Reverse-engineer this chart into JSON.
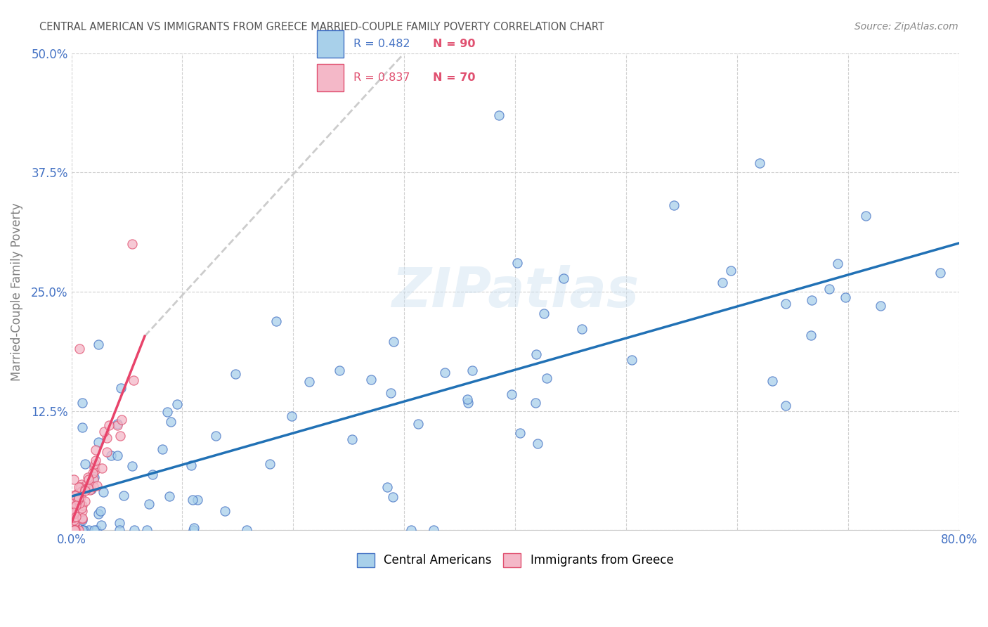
{
  "title": "CENTRAL AMERICAN VS IMMIGRANTS FROM GREECE MARRIED-COUPLE FAMILY POVERTY CORRELATION CHART",
  "source": "Source: ZipAtlas.com",
  "ylabel": "Married-Couple Family Poverty",
  "xlim": [
    0.0,
    0.8
  ],
  "ylim": [
    0.0,
    0.5
  ],
  "yticks": [
    0.0,
    0.125,
    0.25,
    0.375,
    0.5
  ],
  "ytick_labels": [
    "",
    "12.5%",
    "25.0%",
    "37.5%",
    "50.0%"
  ],
  "xtick_positions": [
    0.0,
    0.1,
    0.2,
    0.3,
    0.4,
    0.5,
    0.6,
    0.7,
    0.8
  ],
  "xtick_labels": [
    "0.0%",
    "",
    "",
    "",
    "",
    "",
    "",
    "",
    "80.0%"
  ],
  "blue_fill": "#a8d0ea",
  "blue_edge": "#4472c4",
  "pink_fill": "#f4b8c8",
  "pink_edge": "#e05070",
  "blue_line": "#2171b5",
  "pink_line": "#e8436a",
  "dashed_line": "#cccccc",
  "watermark": "ZIPatlas",
  "legend_blue_r": "R = 0.482",
  "legend_blue_n": "N = 90",
  "legend_pink_r": "R = 0.837",
  "legend_pink_n": "N = 70",
  "tick_color": "#4472c4",
  "title_color": "#555555",
  "ylabel_color": "#808080",
  "source_color": "#888888",
  "grid_color": "#d0d0d0",
  "bg_color": "#ffffff",
  "n_color": "#e05070"
}
